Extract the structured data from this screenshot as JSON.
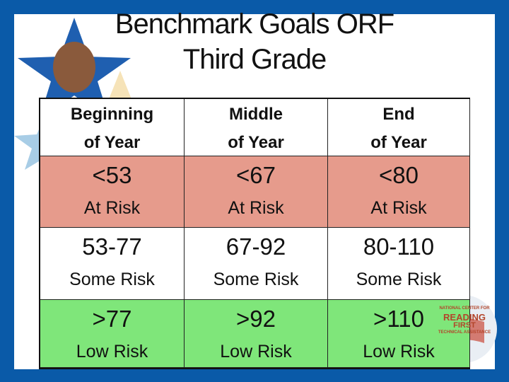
{
  "title": [
    "Benchmark Goals ORF",
    "Third Grade"
  ],
  "table": {
    "header": [
      [
        "Beginning",
        "of Year"
      ],
      [
        "Middle",
        "of Year"
      ],
      [
        "End",
        "of Year"
      ]
    ],
    "rows": [
      [
        {
          "value": "<53",
          "label": "At Risk"
        },
        {
          "value": "<67",
          "label": "At Risk"
        },
        {
          "value": "<80",
          "label": "At Risk"
        }
      ],
      [
        {
          "value": "53-77",
          "label": "Some Risk"
        },
        {
          "value": "67-92",
          "label": "Some Risk"
        },
        {
          "value": "80-110",
          "label": "Some Risk"
        }
      ],
      [
        {
          "value": ">77",
          "label": "Low Risk"
        },
        {
          "value": ">92",
          "label": "Low Risk"
        },
        {
          "value": ">110",
          "label": "Low Risk"
        }
      ]
    ]
  },
  "logo": [
    "NATIONAL CENTER FOR",
    "READING",
    "FIRST",
    "TECHNICAL ASSISTANCE"
  ]
}
